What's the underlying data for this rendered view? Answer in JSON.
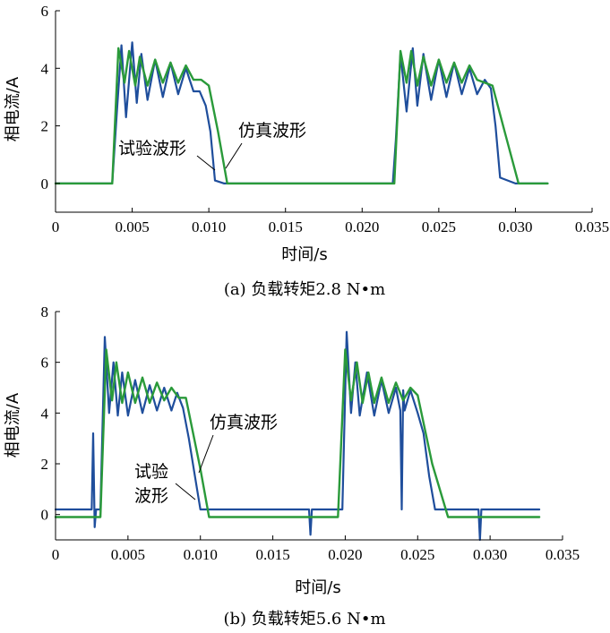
{
  "chart_data": [
    {
      "type": "line",
      "caption": "(a) 负载转矩2.8 N•m",
      "xlabel": "时间/s",
      "ylabel": "相电流/A",
      "xlim": [
        0,
        0.035
      ],
      "ylim": [
        -1,
        6
      ],
      "xticks": [
        0,
        0.005,
        0.01,
        0.015,
        0.02,
        0.025,
        0.03,
        0.035
      ],
      "xtick_labels": [
        "0",
        "0.005",
        "0.010",
        "0.015",
        "0.020",
        "0.025",
        "0.030",
        "0.035"
      ],
      "yticks": [
        0,
        2,
        4,
        6
      ],
      "ytick_labels": [
        "0",
        "2",
        "4",
        "6"
      ],
      "grid": false,
      "series": [
        {
          "name": "试验波形",
          "color": "#1f4e9c",
          "x": [
            0,
            0.0037,
            0.004,
            0.0043,
            0.0046,
            0.005,
            0.0053,
            0.0056,
            0.006,
            0.0065,
            0.007,
            0.0075,
            0.008,
            0.0085,
            0.009,
            0.0094,
            0.0098,
            0.0101,
            0.0104,
            0.011,
            0.015,
            0.02,
            0.022,
            0.0222,
            0.0225,
            0.0229,
            0.0233,
            0.0236,
            0.024,
            0.0245,
            0.025,
            0.0255,
            0.026,
            0.0265,
            0.027,
            0.0275,
            0.028,
            0.0284,
            0.0287,
            0.029,
            0.03,
            0.0321
          ],
          "y": [
            0,
            0,
            2.5,
            4.8,
            2.3,
            4.9,
            2.8,
            4.5,
            2.9,
            4.3,
            3.0,
            4.2,
            3.1,
            4.0,
            3.2,
            3.2,
            2.7,
            1.8,
            0.1,
            0,
            0,
            0,
            0,
            1.5,
            4.5,
            2.5,
            4.7,
            2.7,
            4.5,
            2.9,
            4.3,
            3.0,
            4.2,
            3.1,
            4.0,
            3.1,
            3.6,
            3.3,
            2.0,
            0.2,
            0,
            0
          ]
        },
        {
          "name": "仿真波形",
          "color": "#2a9a3a",
          "x": [
            0,
            0.0037,
            0.0041,
            0.0045,
            0.0048,
            0.0052,
            0.0055,
            0.006,
            0.0065,
            0.007,
            0.0075,
            0.008,
            0.0085,
            0.009,
            0.0095,
            0.01,
            0.0106,
            0.0112,
            0.012,
            0.02,
            0.0221,
            0.0225,
            0.0229,
            0.0232,
            0.0236,
            0.024,
            0.0245,
            0.025,
            0.0255,
            0.026,
            0.0265,
            0.027,
            0.0275,
            0.028,
            0.0285,
            0.0293,
            0.0302,
            0.0321
          ],
          "y": [
            0,
            0,
            4.7,
            3.5,
            4.6,
            3.4,
            4.4,
            3.4,
            4.3,
            3.5,
            4.2,
            3.5,
            4.1,
            3.6,
            3.6,
            3.4,
            1.8,
            0,
            0,
            0,
            0,
            4.6,
            3.5,
            4.6,
            3.4,
            4.4,
            3.4,
            4.3,
            3.5,
            4.2,
            3.5,
            4.1,
            3.6,
            3.5,
            3.4,
            1.8,
            0,
            0
          ]
        }
      ],
      "annotations": [
        {
          "text": "仿真波形",
          "target_series": "仿真波形"
        },
        {
          "text": "试验波形",
          "target_series": "试验波形"
        }
      ]
    },
    {
      "type": "line",
      "caption": "(b) 负载转矩5.6 N•m",
      "xlabel": "时间/s",
      "ylabel": "相电流/A",
      "xlim": [
        0,
        0.035
      ],
      "ylim": [
        -1,
        8
      ],
      "xticks": [
        0,
        0.005,
        0.01,
        0.015,
        0.02,
        0.025,
        0.03,
        0.035
      ],
      "xtick_labels": [
        "0",
        "0.005",
        "0.010",
        "0.015",
        "0.020",
        "0.025",
        "0.030",
        "0.035"
      ],
      "yticks": [
        0,
        2,
        4,
        6,
        8
      ],
      "ytick_labels": [
        "0",
        "2",
        "4",
        "6",
        "8"
      ],
      "grid": false,
      "series": [
        {
          "name": "试验波形",
          "color": "#1f4e9c",
          "x": [
            0,
            0.0025,
            0.0026,
            0.0027,
            0.0028,
            0.0031,
            0.0034,
            0.0037,
            0.004,
            0.0043,
            0.0046,
            0.005,
            0.0055,
            0.006,
            0.0065,
            0.007,
            0.0075,
            0.008,
            0.0084,
            0.0088,
            0.0092,
            0.0096,
            0.01,
            0.0105,
            0.015,
            0.0175,
            0.0176,
            0.0177,
            0.0195,
            0.0198,
            0.0201,
            0.0204,
            0.0207,
            0.021,
            0.0215,
            0.022,
            0.0225,
            0.023,
            0.0235,
            0.0238,
            0.0239,
            0.024,
            0.0241,
            0.0245,
            0.025,
            0.0254,
            0.0258,
            0.0262,
            0.027,
            0.0292,
            0.0293,
            0.0294,
            0.0334
          ],
          "y": [
            0.2,
            0.2,
            3.2,
            -0.5,
            0.2,
            0.2,
            7.0,
            4.0,
            6.0,
            3.9,
            5.6,
            3.9,
            5.3,
            4.0,
            5.1,
            4.1,
            5.0,
            4.1,
            4.8,
            4.2,
            3.0,
            1.6,
            0.2,
            0.2,
            0.2,
            0.2,
            -0.8,
            0.2,
            0.2,
            0.2,
            7.2,
            4.0,
            6.0,
            3.9,
            5.6,
            3.9,
            5.3,
            4.0,
            5.0,
            4.1,
            0.2,
            4.9,
            4.1,
            4.9,
            4.0,
            3.2,
            1.5,
            0.2,
            0.2,
            0.2,
            -1.0,
            0.2,
            0.2
          ]
        },
        {
          "name": "仿真波形",
          "color": "#2a9a3a",
          "x": [
            0,
            0.0031,
            0.0035,
            0.0039,
            0.0042,
            0.0046,
            0.005,
            0.0055,
            0.006,
            0.0065,
            0.007,
            0.0075,
            0.008,
            0.0085,
            0.009,
            0.01,
            0.0106,
            0.0115,
            0.0195,
            0.02,
            0.0204,
            0.0208,
            0.0212,
            0.0216,
            0.022,
            0.0225,
            0.023,
            0.0235,
            0.024,
            0.0245,
            0.025,
            0.026,
            0.0271,
            0.028,
            0.0334
          ],
          "y": [
            -0.1,
            -0.1,
            6.5,
            4.5,
            6.0,
            4.4,
            5.6,
            4.4,
            5.4,
            4.4,
            5.2,
            4.5,
            5.0,
            4.6,
            4.6,
            1.8,
            -0.1,
            -0.1,
            -0.1,
            6.5,
            4.5,
            6.0,
            4.4,
            5.6,
            4.4,
            5.4,
            4.4,
            5.2,
            4.5,
            5.0,
            4.7,
            2.0,
            -0.1,
            -0.1,
            -0.1
          ]
        }
      ],
      "annotations": [
        {
          "text": "仿真波形",
          "target_series": "仿真波形"
        },
        {
          "text": "试验\n波形",
          "target_series": "试验波形"
        }
      ]
    }
  ]
}
